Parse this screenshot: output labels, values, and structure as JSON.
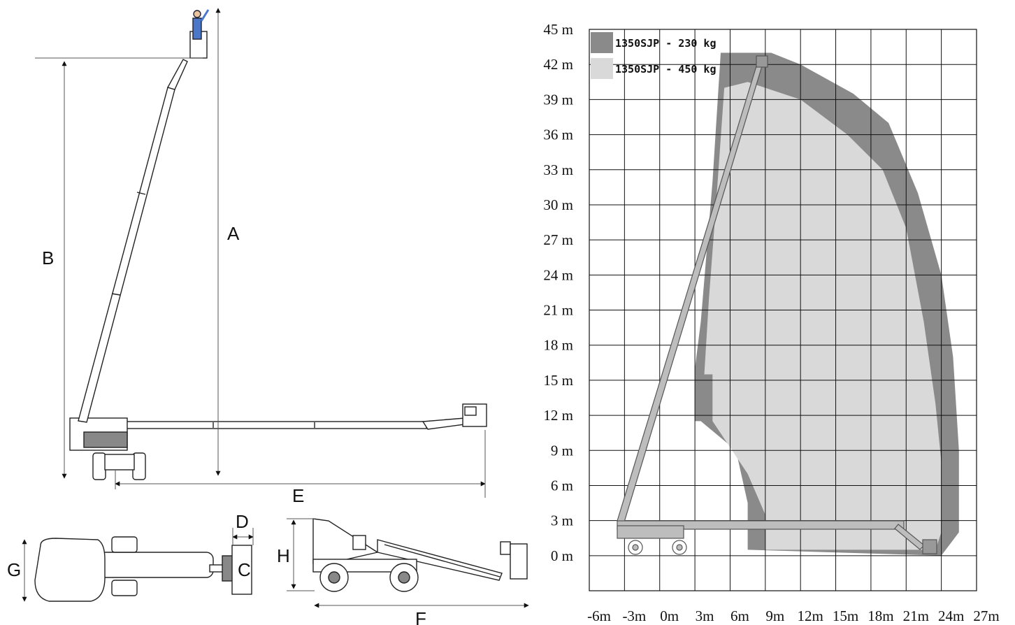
{
  "dimensions": {
    "A": "A",
    "B": "B",
    "C": "C",
    "D": "D",
    "E": "E",
    "F": "F",
    "G": "G",
    "H": "H"
  },
  "chart_data": {
    "type": "area",
    "legend": [
      {
        "name": "1350SJP - 230 kg",
        "color": "#8a8a8a"
      },
      {
        "name": "1350SJP - 450 kg",
        "color": "#d9d9d9"
      }
    ],
    "legend_position": "top-left",
    "grid": true,
    "xlim": [
      -6,
      27
    ],
    "ylim": [
      -3,
      45
    ],
    "x_ticks": [
      "-6m",
      "-3m",
      "0m",
      "3m",
      "6m",
      "9m",
      "12m",
      "15m",
      "18m",
      "21m",
      "24m",
      "27m"
    ],
    "y_ticks": [
      "45 m",
      "42 m",
      "39 m",
      "36 m",
      "33 m",
      "30 m",
      "27 m",
      "24 m",
      "21 m",
      "18 m",
      "15 m",
      "12 m",
      "9 m",
      "6 m",
      "3 m",
      "0 m"
    ],
    "series": [
      {
        "name": "1350SJP - 230 kg",
        "x": [
          4.0,
          4.5,
          5.2,
          9.5,
          12.0,
          16.5,
          19.5,
          22.0,
          24.0,
          25.0,
          25.5,
          25.5,
          24.0,
          7.5,
          7.5,
          6.5,
          3.5,
          3.0,
          3.0,
          3.5
        ],
        "y": [
          26.0,
          32.0,
          43.0,
          43.0,
          42.0,
          39.5,
          37.0,
          31.0,
          24.0,
          17.0,
          9.0,
          2.0,
          0.0,
          0.5,
          4.5,
          9.0,
          11.5,
          11.5,
          16.0,
          20.0
        ]
      },
      {
        "name": "1350SJP - 450 kg",
        "x": [
          4.8,
          5.5,
          7.5,
          12.0,
          16.0,
          19.0,
          21.0,
          22.5,
          23.5,
          24.0,
          24.0,
          23.5,
          9.0,
          9.0,
          7.5,
          5.5,
          4.5,
          4.5,
          3.8,
          4.2
        ],
        "y": [
          30.0,
          40.0,
          40.5,
          39.0,
          36.0,
          33.0,
          28.0,
          20.0,
          13.0,
          8.0,
          2.0,
          0.5,
          0.5,
          3.5,
          7.0,
          10.0,
          11.5,
          15.5,
          15.5,
          22.0
        ]
      }
    ]
  }
}
